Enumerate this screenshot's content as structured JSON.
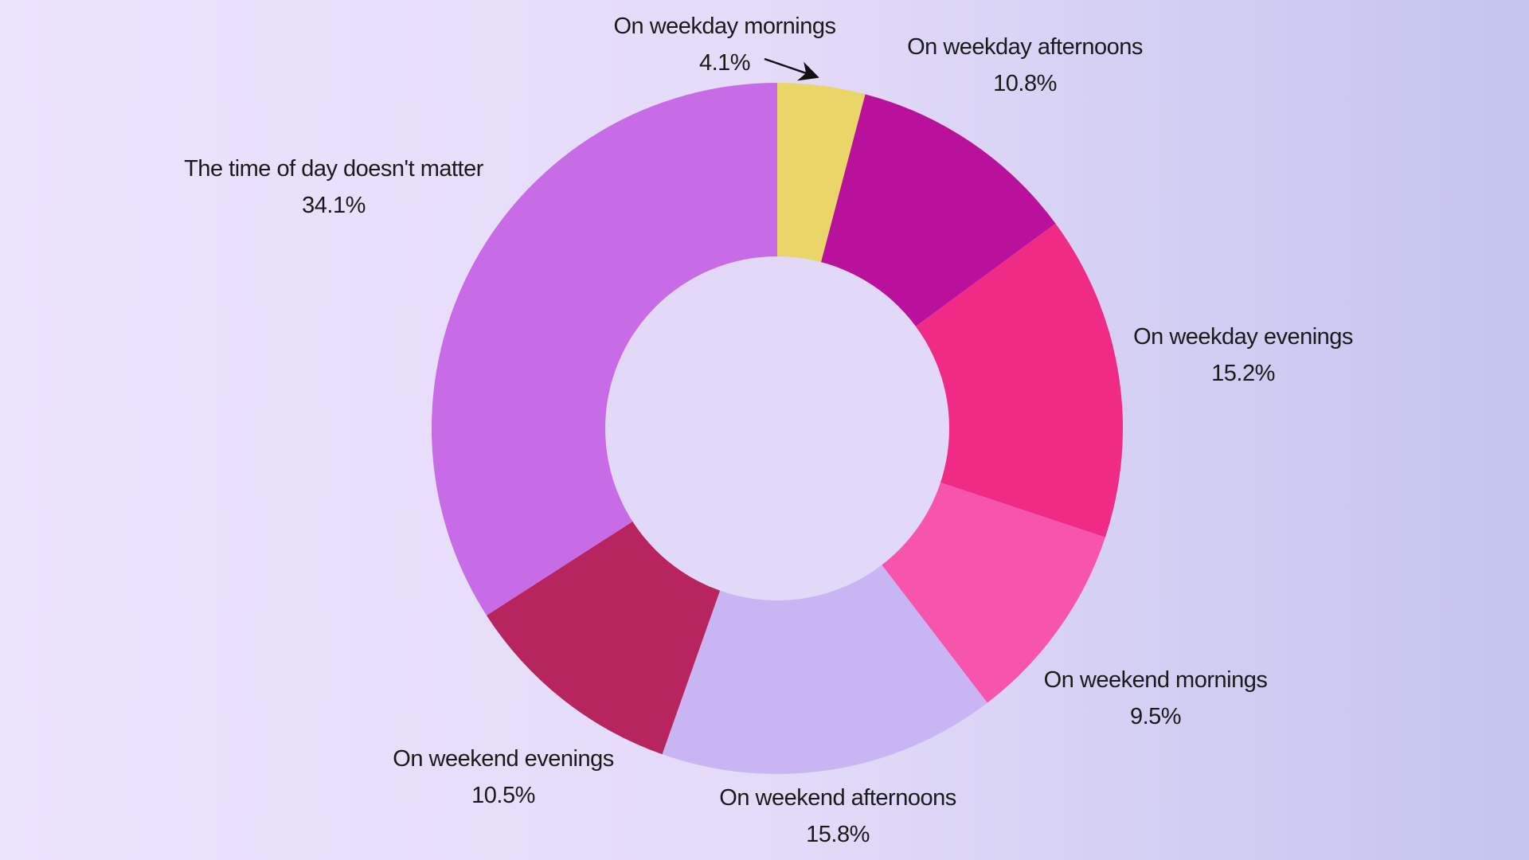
{
  "chart_data": {
    "type": "pie",
    "donut": true,
    "title": "",
    "slices": [
      {
        "label": "On weekday mornings",
        "value": 4.1,
        "value_label": "4.1%",
        "color": "#ead668"
      },
      {
        "label": "On weekday afternoons",
        "value": 10.8,
        "value_label": "10.8%",
        "color": "#b9119c"
      },
      {
        "label": "On weekday evenings",
        "value": 15.2,
        "value_label": "15.2%",
        "color": "#f02b86"
      },
      {
        "label": "On weekend mornings",
        "value": 9.5,
        "value_label": "9.5%",
        "color": "#f655ab"
      },
      {
        "label": "On weekend afternoons",
        "value": 15.8,
        "value_label": "15.8%",
        "color": "#c9b5f4"
      },
      {
        "label": "On weekend evenings",
        "value": 10.5,
        "value_label": "10.5%",
        "color": "#b7245e"
      },
      {
        "label": "The time of day doesn't matter",
        "value": 34.1,
        "value_label": "34.1%",
        "color": "#c86be6"
      }
    ],
    "start_angle": "12 o'clock",
    "direction": "clockwise",
    "legend": "none",
    "center_color": "#e2d8f7"
  }
}
